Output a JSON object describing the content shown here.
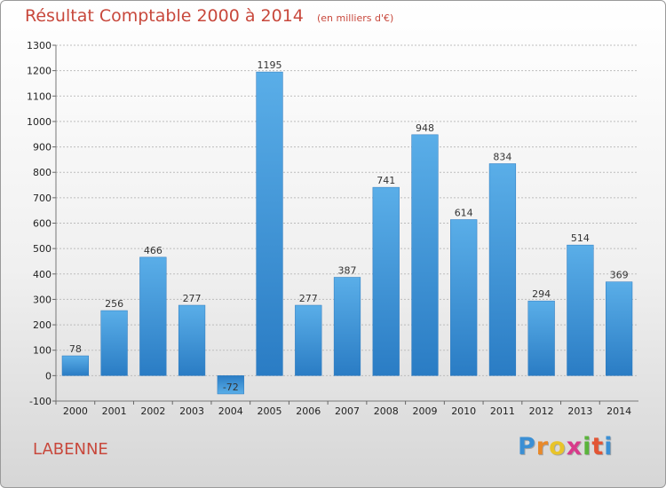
{
  "chart_data": {
    "type": "bar",
    "title": "Résultat Comptable 2000 à 2014",
    "subtitle": "(en milliers d'€)",
    "categories": [
      "2000",
      "2001",
      "2002",
      "2003",
      "2004",
      "2005",
      "2006",
      "2007",
      "2008",
      "2009",
      "2010",
      "2011",
      "2012",
      "2013",
      "2014"
    ],
    "values": [
      78,
      256,
      466,
      277,
      -72,
      1195,
      277,
      387,
      741,
      948,
      614,
      834,
      294,
      514,
      369
    ],
    "ylim": [
      -100,
      1300
    ],
    "yticks": [
      -100,
      0,
      100,
      200,
      300,
      400,
      500,
      600,
      700,
      800,
      900,
      1000,
      1100,
      1200,
      1300
    ],
    "grid": true,
    "bar_color": "#3f95d8"
  },
  "commune": "LABENNE",
  "logo": {
    "letters": [
      "P",
      "r",
      "o",
      "x",
      "i",
      "t",
      "i"
    ],
    "colors": [
      "#3b8fd4",
      "#e8892a",
      "#e8c42a",
      "#d83a8a",
      "#5bb43c",
      "#e25534",
      "#3b8fd4"
    ]
  }
}
